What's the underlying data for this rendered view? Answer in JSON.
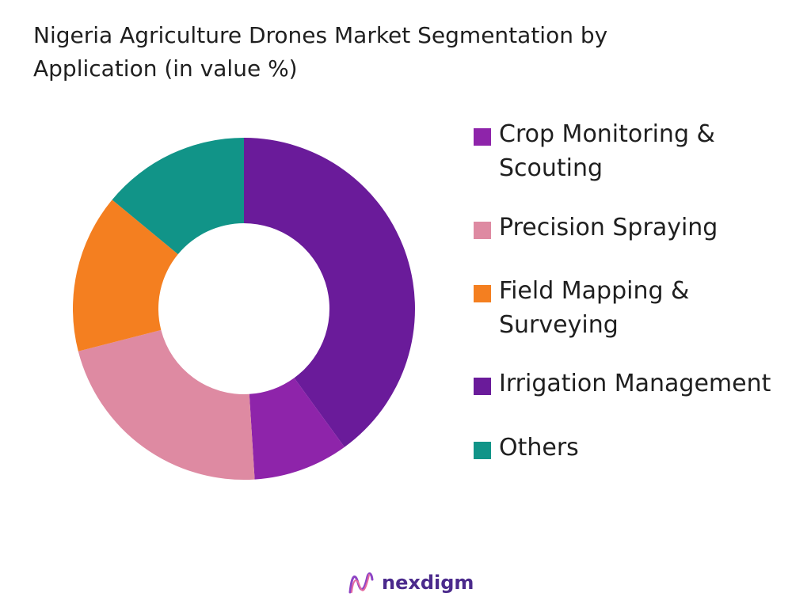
{
  "chart_data": {
    "type": "pie",
    "title": "Nigeria Agriculture Drones Market Segmentation by Application (in value %)",
    "categories": [
      "Crop Monitoring & Scouting",
      "Precision Spraying",
      "Field Mapping & Surveying",
      "Irrigation Management",
      "Others"
    ],
    "values": [
      40,
      22,
      15,
      9,
      14
    ],
    "slice_order_clockwise_from_top": [
      "Crop Monitoring & Scouting",
      "Irrigation Management",
      "Precision Spraying",
      "Field Mapping & Surveying",
      "Others"
    ],
    "colors": {
      "Crop Monitoring & Scouting": "#6a1b9a",
      "Precision Spraying": "#de8aa2",
      "Field Mapping & Surveying": "#f47f20",
      "Irrigation Management": "#8e24aa",
      "Others": "#119488"
    },
    "legend_swatch_colors": [
      "#8e24aa",
      "#de8aa2",
      "#f47f20",
      "#6a1b9a",
      "#119488"
    ],
    "legend_position": "right",
    "donut": true
  },
  "legend": {
    "items": [
      {
        "label": "Crop Monitoring & Scouting"
      },
      {
        "label": "Precision Spraying"
      },
      {
        "label": "Field Mapping & Surveying"
      },
      {
        "label": "Irrigation Management"
      },
      {
        "label": "Others"
      }
    ]
  },
  "brand": {
    "name": "nexdigm",
    "icon": "nexdigm-logo-icon",
    "color": "#4b2a8c"
  }
}
